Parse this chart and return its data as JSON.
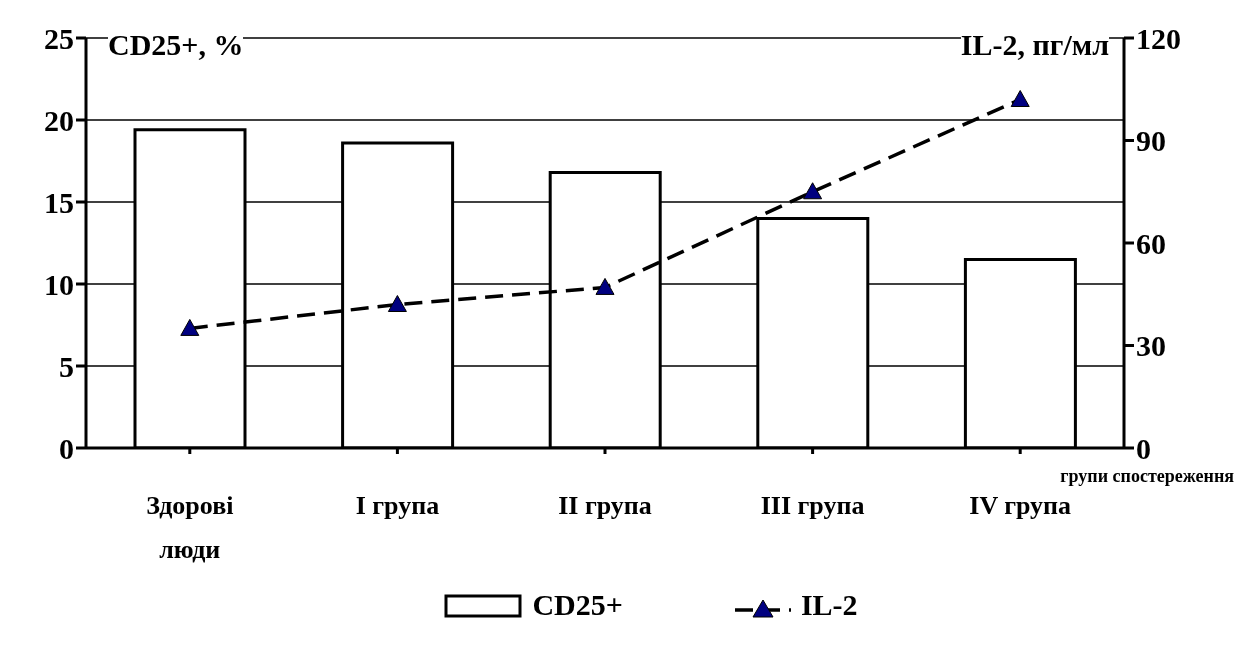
{
  "chart_data": {
    "type": "bar",
    "categories": [
      "Здорові люди",
      "I група",
      "II група",
      "III група",
      "IV група"
    ],
    "xlabel": "групи спостереження",
    "ylabel": "CD25+, %",
    "y2label": "IL-2, пг/мл",
    "series": [
      {
        "name": "CD25+",
        "color": "#ffffff",
        "values": [
          19.4,
          18.6,
          16.8,
          14.0,
          11.5
        ]
      },
      {
        "name": "IL-2",
        "type": "line",
        "axis": "y2",
        "color": "#000080",
        "marker": "triangle",
        "line_style": "dashed",
        "values": [
          35,
          42,
          47,
          75,
          102
        ]
      }
    ],
    "ylim": [
      0,
      25
    ],
    "yticks": [
      0,
      5,
      10,
      15,
      20,
      25
    ],
    "y2lim": [
      0,
      120
    ],
    "y2ticks": [
      0,
      30,
      60,
      90,
      120
    ],
    "grid": "y",
    "legend": "bottom"
  }
}
